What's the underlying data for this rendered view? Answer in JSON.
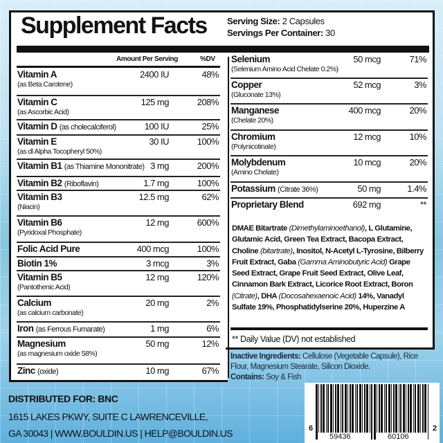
{
  "title": "Supplement Facts",
  "serving": {
    "size_label": "Serving Size:",
    "size_value": "2 Capsules",
    "per_label": "Servings Per Container:",
    "per_value": "30"
  },
  "header": {
    "amount": "Amount Per Serving",
    "dv": "%DV"
  },
  "left_rows": [
    {
      "name": "Vitamin A",
      "inline": "",
      "sub": "(as Beta Carotene)",
      "amount": "2400 IU",
      "dv": "48%"
    },
    {
      "name": "Vitamin C",
      "inline": "",
      "sub": "(as Ascorbic Acid)",
      "amount": "125 mg",
      "dv": "208%"
    },
    {
      "name": "Vitamin D",
      "inline": "(as cholecalciferol)",
      "sub": "",
      "amount": "100 IU",
      "dv": "25%"
    },
    {
      "name": "Vitamin E",
      "inline": "",
      "sub": "(as dl Alpha Tocopheryl 50%)",
      "amount": "30 IU",
      "dv": "100%"
    },
    {
      "name": "Vitamin B1",
      "inline": "(as Thiamine Mononitrate)",
      "sub": "",
      "amount": "3 mg",
      "dv": "200%"
    },
    {
      "name": "Vitamin B2",
      "inline": "(Riboflavin)",
      "sub": "",
      "amount": "1.7 mg",
      "dv": "100%"
    },
    {
      "name": "Vitamin B3",
      "inline": "",
      "sub": "(Niacin)",
      "amount": "12.5 mg",
      "dv": "62%"
    },
    {
      "name": "Vitamin B6",
      "inline": "",
      "sub": "(Pyridoxal Phosphate)",
      "amount": "12 mg",
      "dv": "600%"
    },
    {
      "name": "Folic Acid Pure",
      "inline": "",
      "sub": "",
      "amount": "400 mcg",
      "dv": "100%"
    },
    {
      "name": "Biotin 1%",
      "inline": "",
      "sub": "",
      "amount": "3 mcg",
      "dv": "3%"
    },
    {
      "name": "Vitamin B5",
      "inline": "",
      "sub": "(Pantothenic Acid)",
      "amount": "12 mg",
      "dv": "120%"
    },
    {
      "name": "Calcium",
      "inline": "",
      "sub": "(as calcium carbonate)",
      "amount": "20 mg",
      "dv": "2%"
    },
    {
      "name": "Iron",
      "inline": "(as Ferrous Fumarate)",
      "sub": "",
      "amount": "1 mg",
      "dv": "6%"
    },
    {
      "name": "Magnesium",
      "inline": "",
      "sub": "(as magnesium oxide 58%)",
      "amount": "50 mg",
      "dv": "12%"
    },
    {
      "name": "Zinc",
      "inline": "(oxide)",
      "sub": "",
      "amount": "10 mg",
      "dv": "67%"
    }
  ],
  "right_rows": [
    {
      "name": "Selenium",
      "inline": "",
      "sub": "(Selenium Amino Acid Chelate 0.2%)",
      "amount": "50 mcg",
      "dv": "71%"
    },
    {
      "name": "Copper",
      "inline": "",
      "sub": "(Gluconate 13%)",
      "amount": "52 mcg",
      "dv": "3%"
    },
    {
      "name": "Manganese",
      "inline": "",
      "sub": "(Chelate 20%)",
      "amount": "400 mcg",
      "dv": "20%"
    },
    {
      "name": "Chromium",
      "inline": "",
      "sub": "(Polynicotinate)",
      "amount": "12 mcg",
      "dv": "10%"
    },
    {
      "name": "Molybdenum",
      "inline": "",
      "sub": "(Amino Chelate)",
      "amount": "10 mcg",
      "dv": "20%"
    },
    {
      "name": "Potassium",
      "inline": "(Citrate 36%)",
      "sub": "",
      "amount": "50 mg",
      "dv": "1.4%"
    },
    {
      "name": "Proprietary Blend",
      "inline": "",
      "sub": "",
      "amount": "692 mg",
      "dv": "**"
    }
  ],
  "blend_parts": [
    [
      "DMAE Bitartrate ",
      false
    ],
    [
      "(Dimethylaminoethanol)",
      true
    ],
    [
      ", L Glutamine, Glutamic Acid, Green Tea Extract, Bacopa Extract, Choline ",
      false
    ],
    [
      "(bitartrate)",
      true
    ],
    [
      ", Inositol, N-Acetyl L-Tyrosine, Bilberry Fruit Extract, Gaba ",
      false
    ],
    [
      "(Gamma Aminobutyric Acid)",
      true
    ],
    [
      " Grape Seed Extract, Grape Fruit Seed Extract, Olive Leaf, Cinnamon Bark Extract, Licorice Root Extract, Boron ",
      false
    ],
    [
      "(Citrate)",
      true
    ],
    [
      ", DHA ",
      false
    ],
    [
      "(Docosahexaenoic Acid)",
      true
    ],
    [
      " 14%, Vanadyl Sulfate 19%, Phosphatidylserine 20%, Huperzine A",
      false
    ]
  ],
  "dv_note": "** Daily Value (DV) not established",
  "inactive": {
    "label": "Inactive Ingredients:",
    "value": "Cellulose (Vegetable Capsule), Rice Flour, Magnesium Stearate, Silicon Dioxide.",
    "contains_label": "Contains:",
    "contains_value": "Soy & Fish"
  },
  "distributor": {
    "label": "DISTRIBUTED FOR: BNC",
    "line1": "1615 LAKES PKWY, SUITE C LAWRENCEVILLE,",
    "line2": "GA 30043 | WWW.BOULDIN.US | HELP@BOULDIN.US"
  },
  "barcode": {
    "first": "6",
    "left": "59436",
    "right": "60106",
    "last": "2"
  }
}
